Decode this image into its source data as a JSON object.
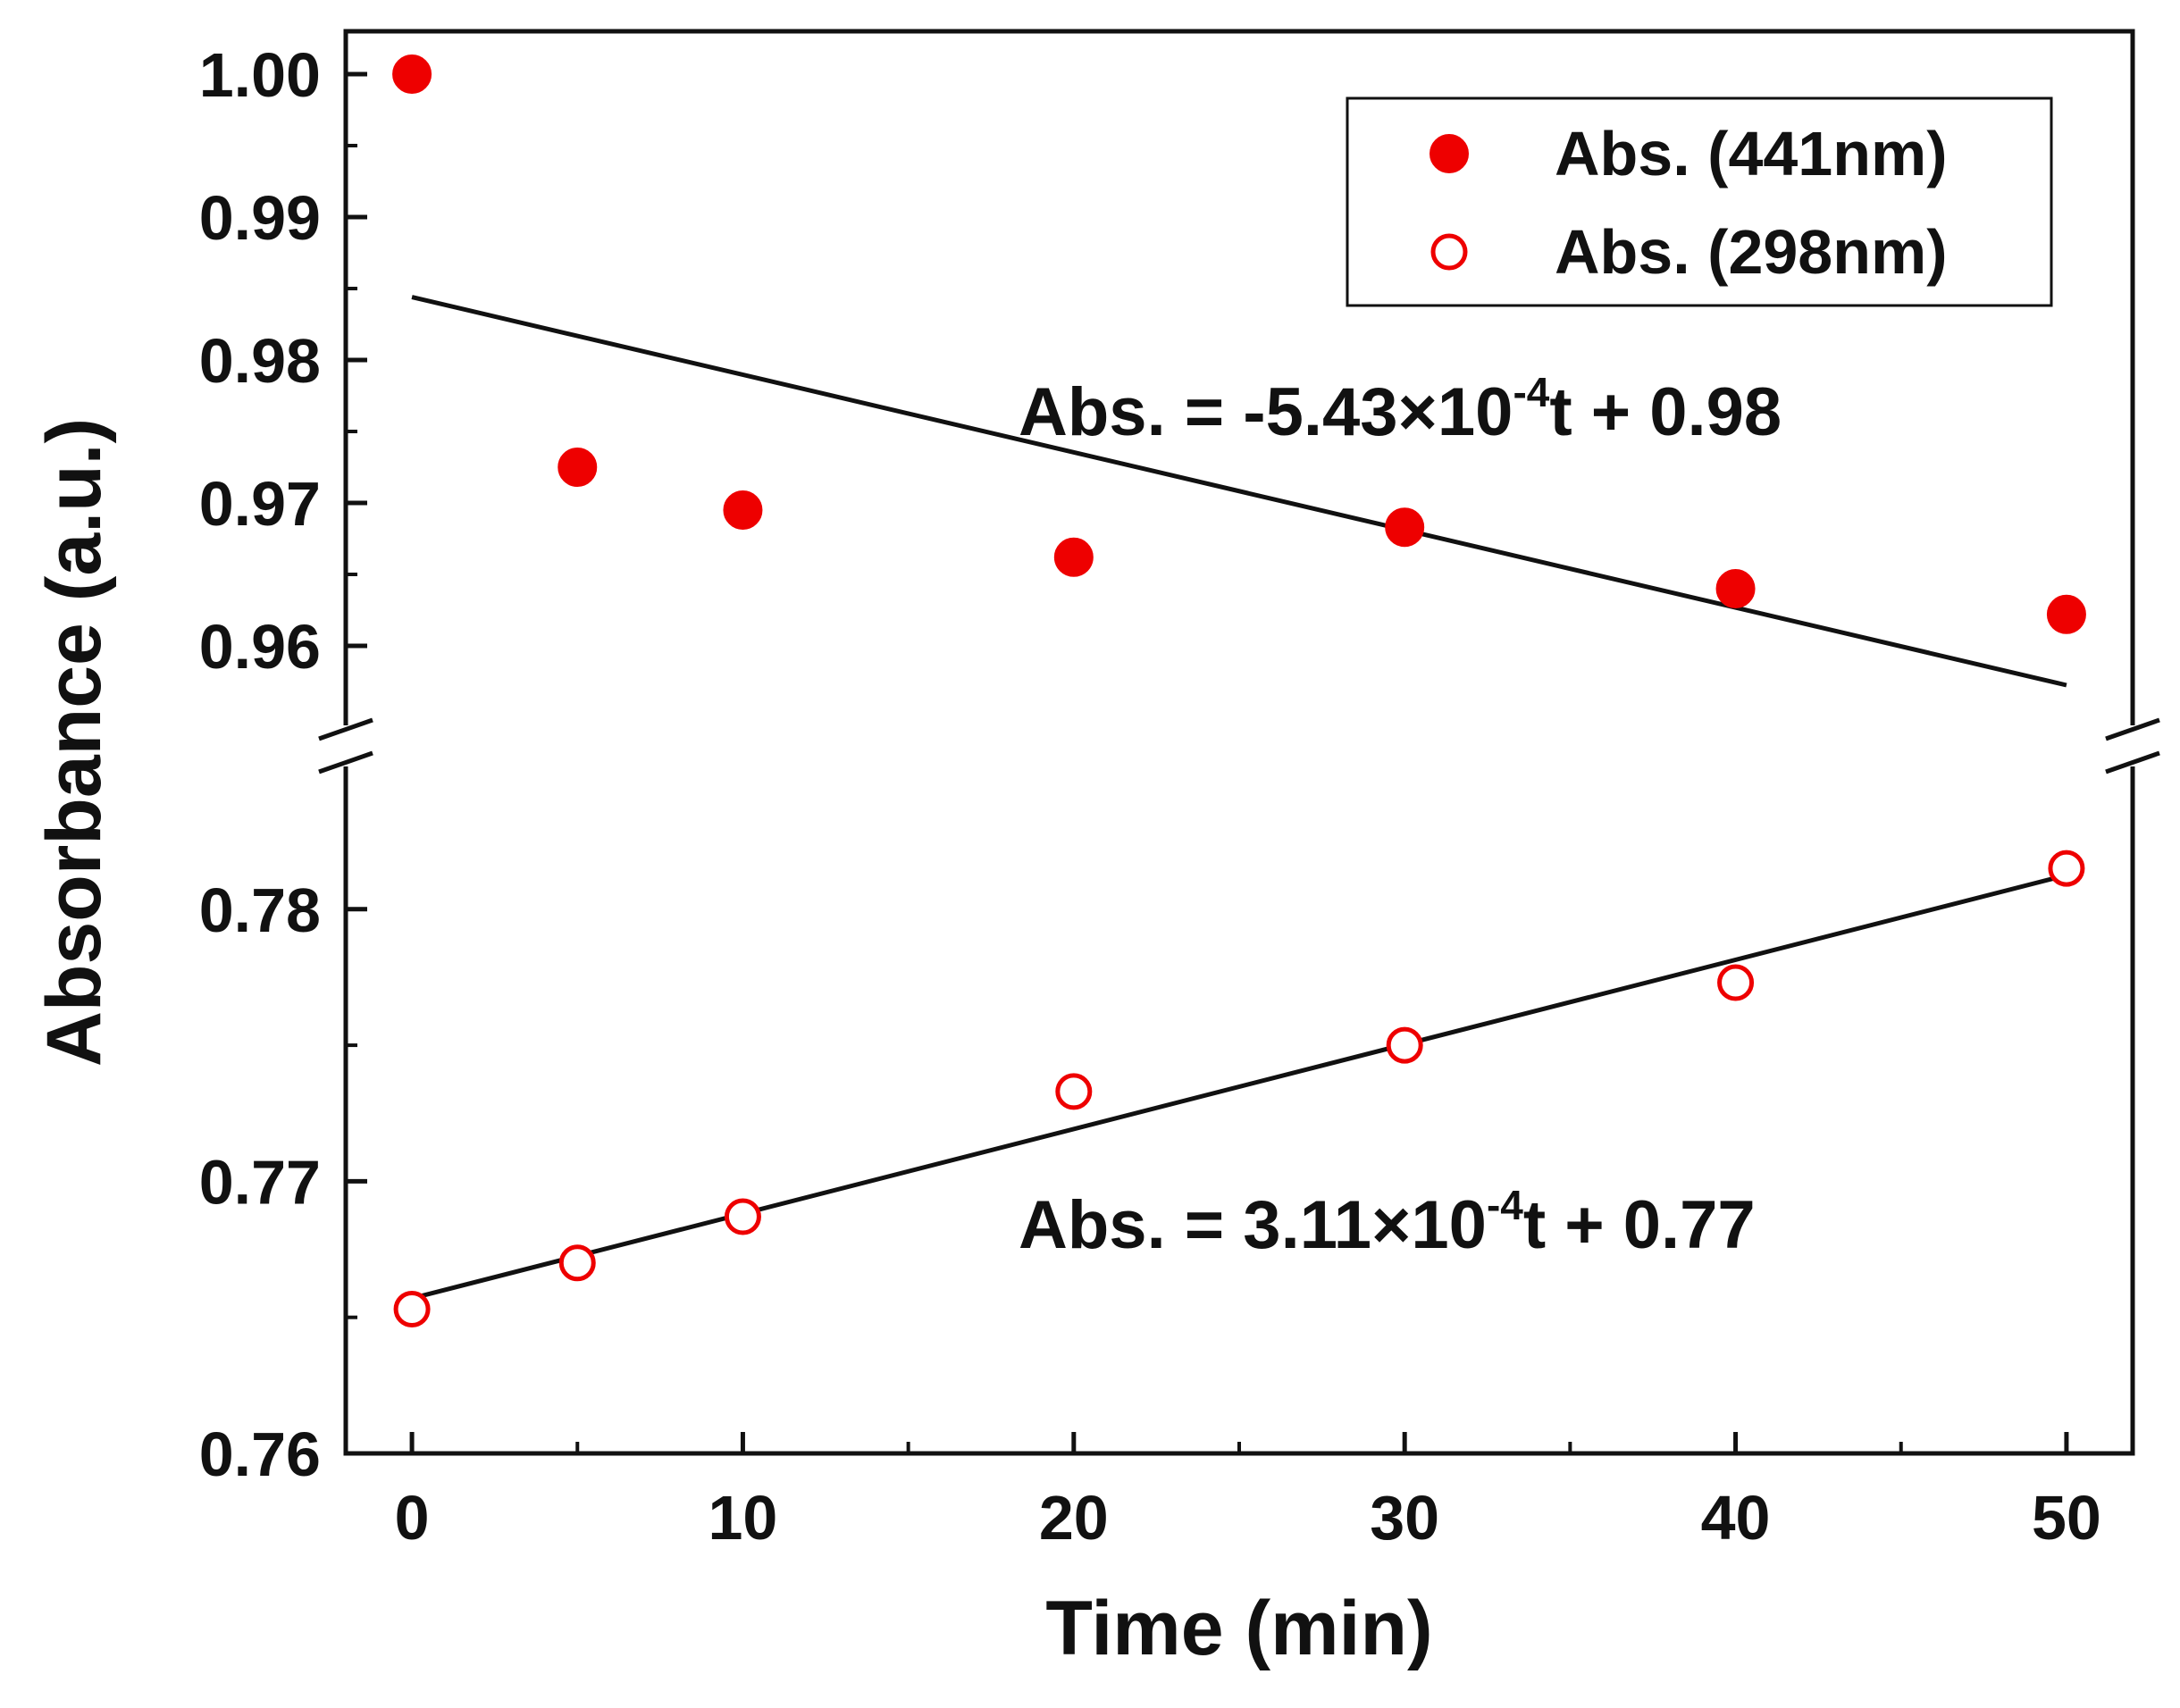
{
  "chart_data": {
    "type": "scatter",
    "title": "",
    "xlabel": "Time (min)",
    "ylabel": "Absorbance (a.u.)",
    "xlim": [
      -2,
      52
    ],
    "x_ticks": [
      0,
      10,
      20,
      30,
      40,
      50
    ],
    "x_tick_labels": [
      "0",
      "10",
      "20",
      "30",
      "40",
      "50"
    ],
    "y_break": true,
    "upper_panel": {
      "ylim": [
        0.953,
        1.003
      ],
      "ticks": [
        0.96,
        0.97,
        0.98,
        0.99,
        1.0
      ],
      "tick_labels": [
        "0.96",
        "0.97",
        "0.98",
        "0.99",
        "1.00"
      ]
    },
    "lower_panel": {
      "ylim": [
        0.76,
        0.786
      ],
      "ticks": [
        0.76,
        0.77,
        0.78
      ],
      "tick_labels": [
        "0.76",
        "0.77",
        "0.78"
      ]
    },
    "series": [
      {
        "name": "Abs. (441nm)",
        "marker": "filled-circle",
        "color": "#ee0000",
        "panel": "upper",
        "x": [
          0,
          5,
          10,
          20,
          30,
          40,
          50
        ],
        "y": [
          1.0,
          0.9725,
          0.9695,
          0.9662,
          0.9683,
          0.964,
          0.9622
        ]
      },
      {
        "name": "Abs. (298nm)",
        "marker": "open-circle",
        "color": "#ee0000",
        "panel": "lower",
        "x": [
          0,
          5,
          10,
          20,
          30,
          40,
          50
        ],
        "y": [
          0.7653,
          0.767,
          0.7687,
          0.7733,
          0.775,
          0.7773,
          0.7815
        ]
      }
    ],
    "fits": [
      {
        "panel": "upper",
        "slope": -0.000543,
        "intercept": 0.9844,
        "x_range": [
          0,
          50
        ],
        "label_main": "Abs. = -5.43×10",
        "label_exp": "-4",
        "label_tail": "t + 0.98"
      },
      {
        "panel": "lower",
        "slope": 0.000311,
        "intercept": 0.7657,
        "x_range": [
          0,
          50
        ],
        "label_main": "Abs. = 3.11×10",
        "label_exp": "-4",
        "label_tail": "t + 0.77"
      }
    ],
    "legend": {
      "position": "top-right",
      "entries": [
        "Abs. (441nm)",
        "Abs. (298nm)"
      ]
    }
  }
}
